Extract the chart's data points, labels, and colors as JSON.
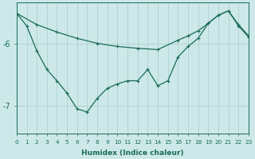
{
  "xlabel": "Humidex (Indice chaleur)",
  "background_color": "#cce8e8",
  "grid_color": "#aacccc",
  "line_color": "#1a6b5a",
  "xlim": [
    0,
    23
  ],
  "ylim": [
    -7.45,
    -5.35
  ],
  "yticks": [
    -7,
    -6
  ],
  "xticks": [
    0,
    1,
    2,
    3,
    4,
    5,
    6,
    7,
    8,
    9,
    10,
    11,
    12,
    13,
    14,
    15,
    16,
    17,
    18,
    19,
    20,
    21,
    22,
    23
  ],
  "upper_x": [
    0,
    2,
    4,
    6,
    8,
    10,
    12,
    14,
    16,
    17,
    18,
    19,
    20,
    21,
    22,
    23
  ],
  "upper_y": [
    -5.52,
    -5.7,
    -5.82,
    -5.92,
    -6.0,
    -6.05,
    -6.08,
    -6.1,
    -5.95,
    -5.88,
    -5.8,
    -5.68,
    -5.55,
    -5.48,
    -5.7,
    -5.88
  ],
  "lower_x": [
    0,
    1,
    2,
    3,
    4,
    5,
    6,
    7,
    8,
    9,
    10,
    11,
    12,
    13,
    14,
    15,
    16,
    17,
    18,
    19,
    20,
    21,
    22,
    23
  ],
  "lower_y": [
    -5.52,
    -5.72,
    -6.12,
    -6.42,
    -6.6,
    -6.8,
    -7.05,
    -7.1,
    -6.88,
    -6.72,
    -6.65,
    -6.6,
    -6.6,
    -6.42,
    -6.68,
    -6.6,
    -6.22,
    -6.05,
    -5.92,
    -5.68,
    -5.55,
    -5.48,
    -5.72,
    -5.9
  ]
}
